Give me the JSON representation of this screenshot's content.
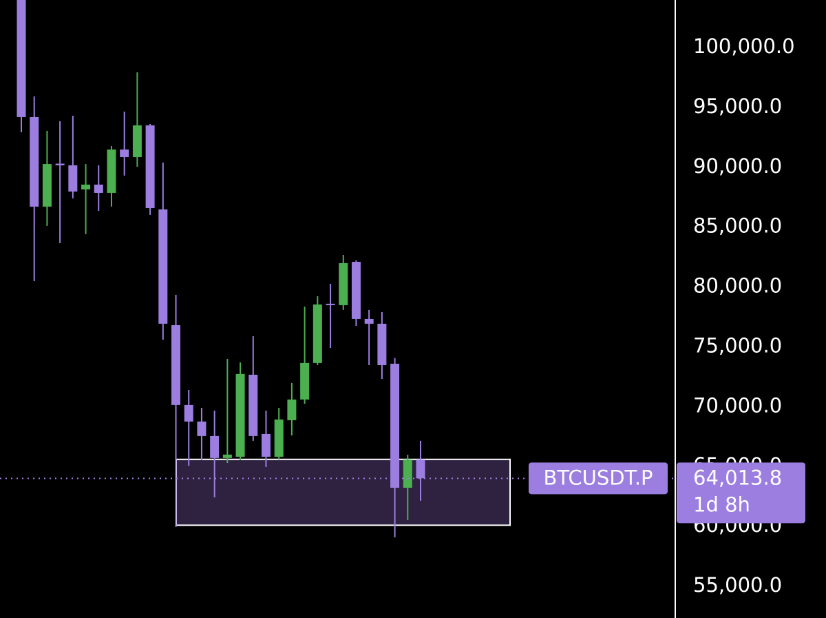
{
  "chart_data": {
    "type": "candlestick",
    "symbol": "BTCUSDT.P",
    "last_price": {
      "value": 64013.8,
      "label": "64,013.8"
    },
    "countdown": "1d 8h",
    "up_color": "#4caf50",
    "down_color": "#9c7ee0",
    "open": [
      104000,
      94190,
      86710,
      90300,
      90160,
      88150,
      88550,
      87860,
      91480,
      90850,
      93500,
      86480,
      76810,
      70140,
      68760,
      67550,
      65710,
      65820,
      72670,
      67720,
      65820,
      68870,
      70600,
      73650,
      78600,
      78480,
      82100,
      77330,
      76930,
      73590,
      63230,
      65590
    ],
    "high": [
      104500,
      95920,
      93040,
      93840,
      94300,
      90270,
      90160,
      91770,
      94650,
      97930,
      93610,
      90390,
      79340,
      71400,
      69900,
      69670,
      73990,
      73700,
      75890,
      69670,
      69900,
      71980,
      78360,
      79230,
      80260,
      82680,
      82220,
      78080,
      77900,
      74050,
      65990,
      67150
    ],
    "low": [
      92920,
      80490,
      85100,
      83660,
      87400,
      84410,
      86360,
      86710,
      89300,
      90040,
      86020,
      75600,
      59950,
      65070,
      65530,
      62430,
      65300,
      65530,
      67150,
      64960,
      65590,
      67600,
      70250,
      73470,
      74910,
      78080,
      76750,
      73470,
      72320,
      59090,
      60530,
      62140
    ],
    "close": [
      94190,
      86710,
      90270,
      90160,
      87970,
      88550,
      87860,
      91480,
      90850,
      93500,
      86590,
      76930,
      70140,
      68760,
      67550,
      65710,
      66000,
      72730,
      67550,
      65820,
      68930,
      70600,
      73650,
      78540,
      78480,
      81990,
      77330,
      76930,
      73470,
      63230,
      65590,
      64013.8
    ],
    "zone": {
      "top": 65600,
      "bottom": 60100
    },
    "ylim": [
      52350,
      103970
    ],
    "yticks": [
      {
        "value": 55000,
        "label": "55,000.0"
      },
      {
        "value": 60000,
        "label": "60,000.0"
      },
      {
        "value": 65000,
        "label": "65,000.0"
      },
      {
        "value": 70000,
        "label": "70,000.0"
      },
      {
        "value": 75000,
        "label": "75,000.0"
      },
      {
        "value": 80000,
        "label": "80,000.0"
      },
      {
        "value": 85000,
        "label": "85,000.0"
      },
      {
        "value": 90000,
        "label": "90,000.0"
      },
      {
        "value": 95000,
        "label": "95,000.0"
      },
      {
        "value": 100000,
        "label": "100,000.0"
      }
    ]
  }
}
